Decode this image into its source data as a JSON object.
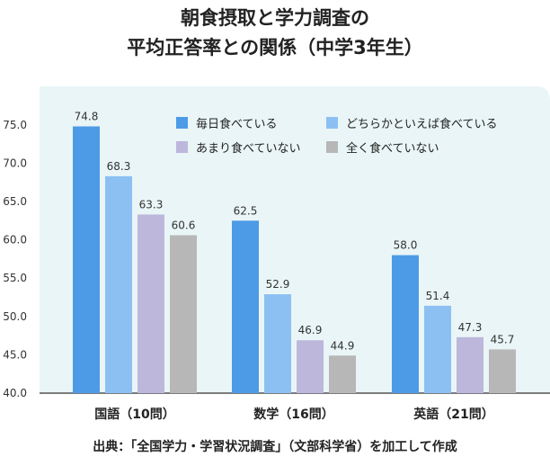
{
  "title_line1": "朝食摂取と学力調査の",
  "title_line2": "平均正答率との関係（中学3年生）",
  "source": "出典：「全国学力・学習状況調査」（文部科学省）を加工して作成",
  "colors": {
    "panel_bg": "#e9f5f6",
    "axis": "#555555"
  },
  "chart_data": {
    "type": "bar",
    "categories": [
      "国語（10問）",
      "数学（16問）",
      "英語（21問）"
    ],
    "series": [
      {
        "name": "毎日食べている",
        "color": "#4d9be6",
        "values": [
          74.8,
          62.5,
          58.0
        ]
      },
      {
        "name": "どちらかといえば食べている",
        "color": "#8cc0f3",
        "values": [
          68.3,
          52.9,
          51.4
        ]
      },
      {
        "name": "あまり食べていない",
        "color": "#bdb7dc",
        "values": [
          63.3,
          46.9,
          47.3
        ]
      },
      {
        "name": "全く食べていない",
        "color": "#b7b7b7",
        "values": [
          60.6,
          44.9,
          45.7
        ]
      }
    ],
    "y_ticks": [
      "40.0",
      "45.0",
      "50.0",
      "55.0",
      "60.0",
      "65.0",
      "70.0",
      "75.0"
    ],
    "ylim": [
      40,
      79
    ],
    "legend": "top-right",
    "grid": false
  }
}
